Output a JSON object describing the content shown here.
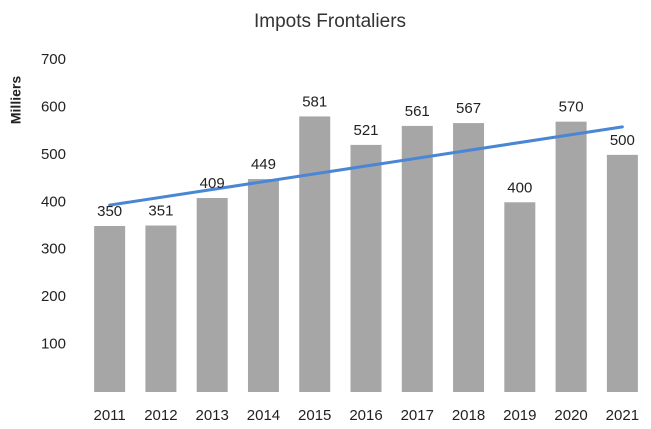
{
  "chart_data": {
    "type": "bar",
    "title": "Impots Frontaliers",
    "y_label": "Milliers",
    "categories": [
      "2011",
      "2012",
      "2013",
      "2014",
      "2015",
      "2016",
      "2017",
      "2018",
      "2019",
      "2020",
      "2021"
    ],
    "values": [
      350,
      351,
      409,
      449,
      581,
      521,
      561,
      567,
      400,
      570,
      500
    ],
    "color": "#a6a6a6",
    "ylim": [
      0,
      700
    ],
    "yticks": [
      100,
      200,
      300,
      400,
      500,
      600,
      700
    ],
    "grid": false,
    "trend": {
      "color": "#4a86d4",
      "start": 394,
      "end": 559
    }
  }
}
